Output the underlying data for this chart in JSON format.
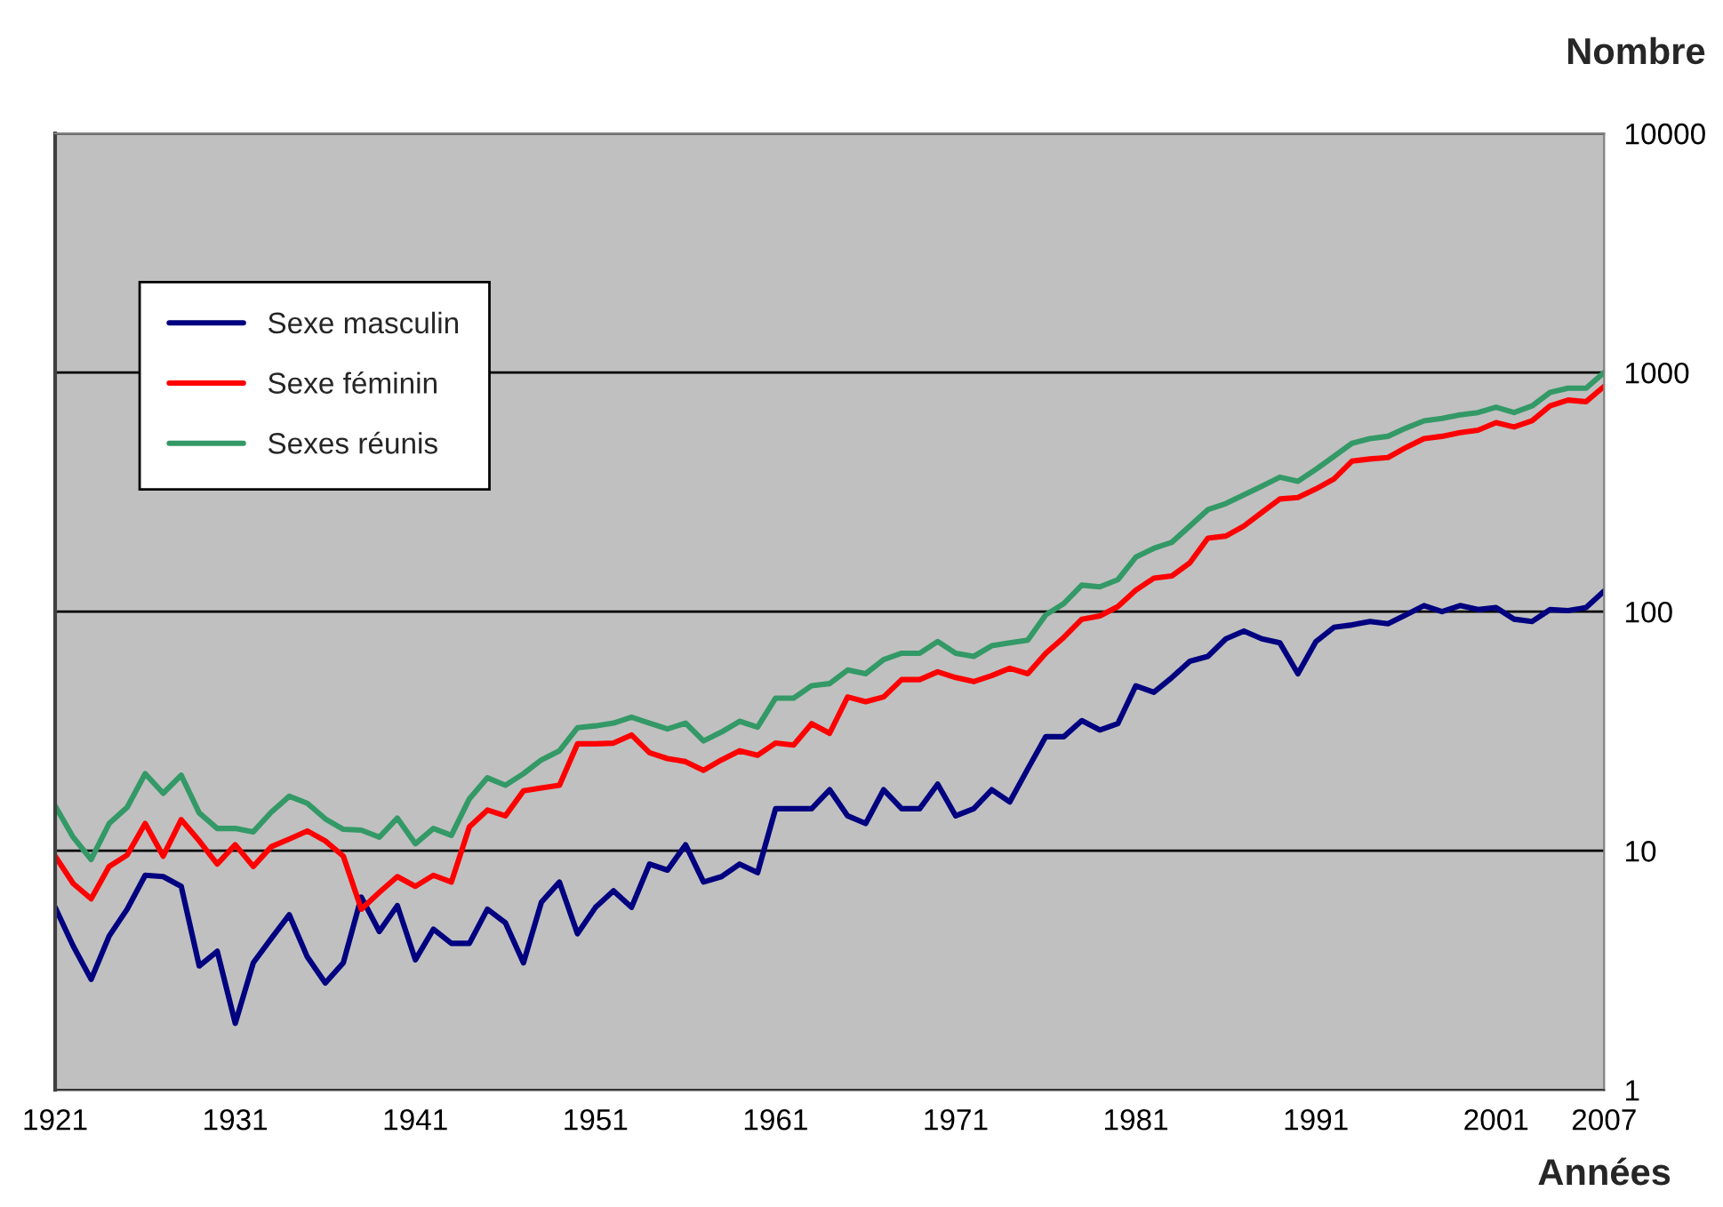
{
  "chart_data": {
    "type": "line",
    "xlabel": "Années",
    "ylabel": "Nombre",
    "x": [
      1921,
      1922,
      1923,
      1924,
      1925,
      1926,
      1927,
      1928,
      1929,
      1930,
      1931,
      1932,
      1933,
      1934,
      1935,
      1936,
      1937,
      1938,
      1939,
      1940,
      1941,
      1942,
      1943,
      1944,
      1945,
      1946,
      1947,
      1948,
      1949,
      1950,
      1951,
      1952,
      1953,
      1954,
      1955,
      1956,
      1957,
      1958,
      1959,
      1960,
      1961,
      1962,
      1963,
      1964,
      1965,
      1966,
      1967,
      1968,
      1969,
      1970,
      1971,
      1972,
      1973,
      1974,
      1975,
      1976,
      1977,
      1978,
      1979,
      1980,
      1981,
      1982,
      1983,
      1984,
      1985,
      1986,
      1987,
      1988,
      1989,
      1990,
      1991,
      1992,
      1993,
      1994,
      1995,
      1996,
      1997,
      1998,
      1999,
      2000,
      2001,
      2002,
      2003,
      2004,
      2005,
      2006,
      2007
    ],
    "series": [
      {
        "name": "Sexe masculin",
        "color": "#000080",
        "values": [
          5.8,
          4.0,
          2.9,
          4.4,
          5.7,
          7.9,
          7.8,
          7.1,
          3.3,
          3.8,
          1.9,
          3.4,
          4.3,
          5.4,
          3.6,
          2.8,
          3.4,
          6.4,
          4.6,
          5.9,
          3.5,
          4.7,
          4.1,
          4.1,
          5.7,
          5.0,
          3.4,
          6.1,
          7.4,
          4.5,
          5.8,
          6.8,
          5.8,
          8.8,
          8.3,
          10.6,
          7.4,
          7.8,
          8.8,
          8.1,
          15,
          15,
          15,
          18,
          14,
          13,
          18,
          15,
          15,
          19,
          14,
          15,
          18,
          16,
          22,
          30,
          30,
          35,
          32,
          34,
          49,
          46,
          53,
          62,
          65,
          77,
          83,
          77,
          74,
          55,
          75,
          86,
          88,
          91,
          89,
          97,
          106,
          100,
          106,
          102,
          104,
          93,
          91,
          102,
          101,
          104,
          122
        ]
      },
      {
        "name": "Sexe féminin",
        "color": "#ff0000",
        "values": [
          9.5,
          7.3,
          6.3,
          8.6,
          9.6,
          13,
          9.5,
          13.5,
          11,
          8.8,
          10.6,
          8.6,
          10.4,
          11.2,
          12.1,
          11,
          9.5,
          5.7,
          6.7,
          7.8,
          7.1,
          7.9,
          7.4,
          12.6,
          14.8,
          14,
          17.8,
          18.3,
          18.8,
          28,
          28,
          28.2,
          30.5,
          25.7,
          24.3,
          23.6,
          21.7,
          24,
          26.2,
          25.1,
          28.2,
          27.7,
          34,
          31,
          44,
          42,
          44,
          52,
          52,
          56,
          53,
          51,
          54,
          58,
          55,
          67,
          78,
          93,
          96,
          105,
          123,
          138,
          141,
          160,
          203,
          207,
          228,
          260,
          296,
          300,
          326,
          359,
          426,
          435,
          441,
          486,
          529,
          541,
          561,
          574,
          617,
          592,
          628,
          725,
          767,
          755,
          875
        ]
      },
      {
        "name": "Sexes réunis",
        "color": "#339966",
        "values": [
          15.4,
          11.4,
          9.2,
          13,
          15.2,
          21,
          17.4,
          20.7,
          14.4,
          12.4,
          12.4,
          12,
          14.5,
          16.9,
          15.8,
          13.6,
          12.3,
          12.2,
          11.4,
          13.7,
          10.7,
          12.4,
          11.6,
          16.5,
          20.2,
          18.8,
          21,
          24,
          26.2,
          32.7,
          33.3,
          34.2,
          36.2,
          34.2,
          32.3,
          34.2,
          28.8,
          31.4,
          34.8,
          32.9,
          43.5,
          43.5,
          49,
          50,
          57,
          55,
          63,
          67,
          67,
          75,
          67,
          65,
          72,
          74,
          76,
          97,
          108,
          129,
          127,
          136,
          169,
          184,
          195,
          228,
          267,
          283,
          308,
          335,
          365,
          351,
          394,
          446,
          506,
          529,
          541,
          586,
          628,
          643,
          665,
          680,
          716,
          680,
          725,
          826,
          860,
          860,
          1000
        ]
      }
    ],
    "log": "y",
    "xlim": [
      1921,
      2007
    ],
    "xticks": [
      1921,
      1931,
      1941,
      1951,
      1961,
      1971,
      1981,
      1991,
      2001,
      2007
    ],
    "ylim": [
      1,
      10000
    ],
    "yticks": [
      1,
      10,
      100,
      1000,
      10000
    ],
    "grid": "y",
    "legend": "top left",
    "marker": "none",
    "line_style": "solid"
  }
}
